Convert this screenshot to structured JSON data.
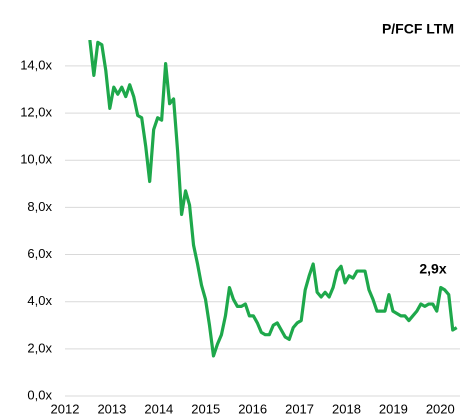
{
  "chart_data": {
    "type": "line",
    "title": "P/FCF LTM",
    "annotation": "2,9x",
    "x": [
      2012.53,
      2012.615,
      2012.7,
      2012.785,
      2012.87,
      2012.955,
      2013.04,
      2013.125,
      2013.21,
      2013.295,
      2013.38,
      2013.465,
      2013.55,
      2013.635,
      2013.72,
      2013.805,
      2013.89,
      2013.975,
      2014.06,
      2014.145,
      2014.23,
      2014.315,
      2014.4,
      2014.485,
      2014.57,
      2014.655,
      2014.74,
      2014.825,
      2014.91,
      2014.995,
      2015.08,
      2015.165,
      2015.25,
      2015.335,
      2015.42,
      2015.505,
      2015.59,
      2015.675,
      2015.76,
      2015.845,
      2015.93,
      2016.015,
      2016.1,
      2016.185,
      2016.27,
      2016.355,
      2016.44,
      2016.525,
      2016.61,
      2016.695,
      2016.78,
      2016.865,
      2016.95,
      2017.035,
      2017.12,
      2017.205,
      2017.29,
      2017.375,
      2017.46,
      2017.545,
      2017.63,
      2017.715,
      2017.8,
      2017.885,
      2017.97,
      2018.055,
      2018.14,
      2018.225,
      2018.31,
      2018.395,
      2018.48,
      2018.565,
      2018.65,
      2018.735,
      2018.82,
      2018.905,
      2018.99,
      2019.075,
      2019.16,
      2019.245,
      2019.33,
      2019.415,
      2019.5,
      2019.585,
      2019.67,
      2019.755,
      2019.84,
      2019.925,
      2020.01,
      2020.095,
      2020.18,
      2020.265,
      2020.35
    ],
    "series": [
      {
        "name": "P/FCF LTM",
        "color": "#1ea84b",
        "values": [
          15.1,
          13.6,
          15.0,
          14.9,
          13.8,
          12.2,
          13.1,
          12.8,
          13.1,
          12.7,
          13.2,
          12.7,
          11.9,
          11.8,
          10.6,
          9.1,
          11.3,
          11.8,
          11.7,
          14.1,
          12.4,
          12.6,
          10.4,
          7.7,
          8.7,
          8.1,
          6.4,
          5.6,
          4.7,
          4.1,
          3.0,
          1.7,
          2.2,
          2.6,
          3.4,
          4.6,
          4.1,
          3.8,
          3.8,
          3.9,
          3.4,
          3.4,
          3.1,
          2.7,
          2.6,
          2.6,
          3.0,
          3.1,
          2.8,
          2.5,
          2.4,
          2.9,
          3.1,
          3.2,
          4.5,
          5.1,
          5.6,
          4.4,
          4.2,
          4.4,
          4.2,
          4.6,
          5.3,
          5.5,
          4.8,
          5.1,
          5.0,
          5.3,
          5.3,
          5.3,
          4.5,
          4.1,
          3.6,
          3.6,
          3.6,
          4.3,
          3.6,
          3.5,
          3.4,
          3.4,
          3.2,
          3.4,
          3.6,
          3.9,
          3.8,
          3.9,
          3.9,
          3.6,
          4.6,
          4.5,
          4.3,
          2.8,
          2.9
        ]
      }
    ],
    "xlim": [
      2012,
      2020.42
    ],
    "xticks": [
      2012,
      2013,
      2014,
      2015,
      2016,
      2017,
      2018,
      2019,
      2020
    ],
    "ylim": [
      0,
      15.1
    ],
    "yticks": [
      {
        "value": 0,
        "label": "0,0x"
      },
      {
        "value": 2,
        "label": "2,0x"
      },
      {
        "value": 4,
        "label": "4,0x"
      },
      {
        "value": 6,
        "label": "6,0x"
      },
      {
        "value": 8,
        "label": "8,0x"
      },
      {
        "value": 10,
        "label": "10,0x"
      },
      {
        "value": 12,
        "label": "12,0x"
      },
      {
        "value": 14,
        "label": "14,0x"
      }
    ],
    "grid": true
  }
}
